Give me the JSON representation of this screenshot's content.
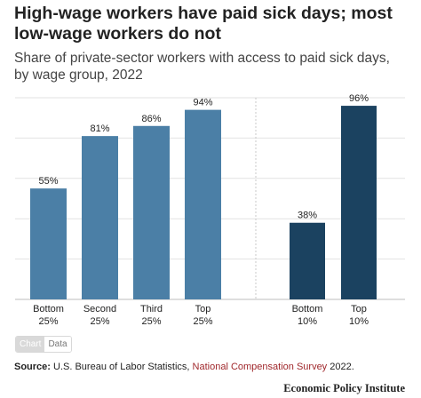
{
  "chart_data": {
    "type": "bar",
    "title": "High-wage workers have paid sick days; most low-wage workers do not",
    "subtitle": "Share of private-sector workers with access to paid sick days, by wage group, 2022",
    "ylim": [
      0,
      100
    ],
    "grid": true,
    "groups": [
      {
        "categories": [
          [
            "Bottom",
            "25%"
          ],
          [
            "Second",
            "25%"
          ],
          [
            "Third",
            "25%"
          ],
          [
            "Top",
            "25%"
          ]
        ],
        "values": [
          55,
          81,
          86,
          94
        ],
        "labels": [
          "55%",
          "81%",
          "86%",
          "94%"
        ],
        "color": "#4b7fa6"
      },
      {
        "categories": [
          [
            "Bottom",
            "10%"
          ],
          [
            "Top",
            "10%"
          ]
        ],
        "values": [
          38,
          96
        ],
        "labels": [
          "38%",
          "96%"
        ],
        "color": "#1b4260"
      }
    ]
  },
  "toggle": {
    "chart_label": "Chart",
    "data_label": "Data"
  },
  "source": {
    "prefix": "Source:",
    "text_before": " U.S. Bureau of Labor Statistics, ",
    "link_text": "National Compensation Survey",
    "text_after": " 2022."
  },
  "brand": "Economic Policy Institute"
}
